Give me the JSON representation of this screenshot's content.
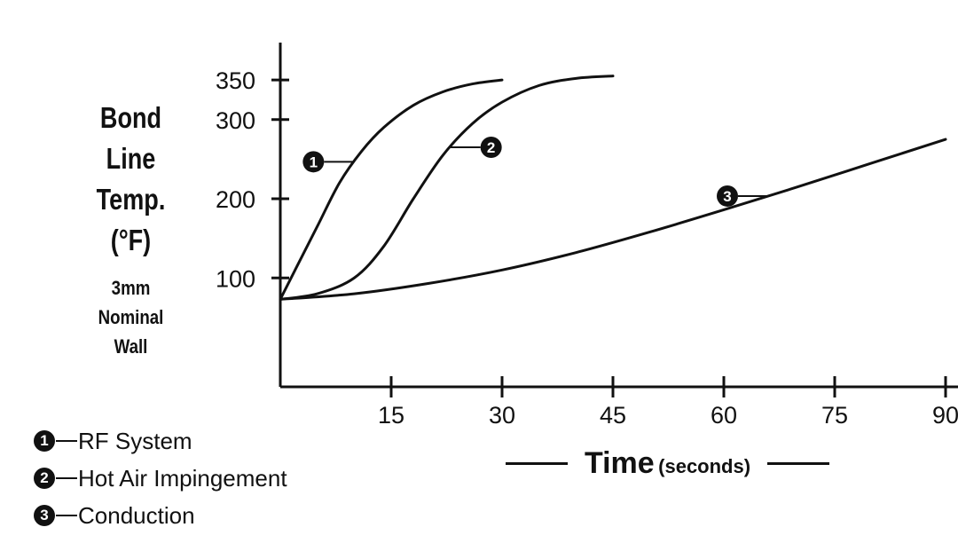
{
  "chart_data": {
    "type": "line",
    "ylabel_lines": [
      "Bond",
      "Line",
      "Temp.",
      "(°F)"
    ],
    "ylabel_note_lines": [
      "3mm",
      "Nominal",
      "Wall"
    ],
    "xlabel": "Time",
    "xlabel_unit": "(seconds)",
    "x_ticks": [
      15,
      30,
      45,
      60,
      75,
      90
    ],
    "y_ticks": [
      100,
      200,
      300,
      350
    ],
    "xlim": [
      0,
      90
    ],
    "ylim": [
      60,
      390
    ],
    "series": [
      {
        "name": "RF System",
        "marker": "1",
        "x": [
          0,
          2,
          5,
          8,
          11,
          14,
          18,
          22,
          26,
          30
        ],
        "y": [
          73,
          110,
          165,
          220,
          260,
          290,
          318,
          335,
          345,
          350
        ]
      },
      {
        "name": "Hot Air Impingement",
        "marker": "2",
        "x": [
          0,
          5,
          10,
          14,
          18,
          22,
          26,
          30,
          35,
          40,
          45
        ],
        "y": [
          73,
          80,
          100,
          140,
          200,
          255,
          295,
          322,
          343,
          352,
          355
        ]
      },
      {
        "name": "Conduction",
        "marker": "3",
        "x": [
          0,
          10,
          20,
          30,
          40,
          50,
          60,
          70,
          80,
          90
        ],
        "y": [
          73,
          80,
          93,
          110,
          132,
          158,
          186,
          215,
          245,
          275
        ]
      }
    ],
    "legend": [
      {
        "marker": "1",
        "label": "RF System"
      },
      {
        "marker": "2",
        "label": "Hot Air Impingement"
      },
      {
        "marker": "3",
        "label": "Conduction"
      }
    ],
    "callouts": [
      {
        "marker": "1",
        "at_series": 0,
        "at_x": 10,
        "side": "left"
      },
      {
        "marker": "2",
        "at_series": 1,
        "at_x": 23,
        "side": "right"
      },
      {
        "marker": "3",
        "at_series": 2,
        "at_x": 66,
        "side": "left"
      }
    ],
    "grid": false,
    "legend_position": "bottom-left",
    "colors": {
      "line": "#111111",
      "background": "#ffffff"
    }
  }
}
